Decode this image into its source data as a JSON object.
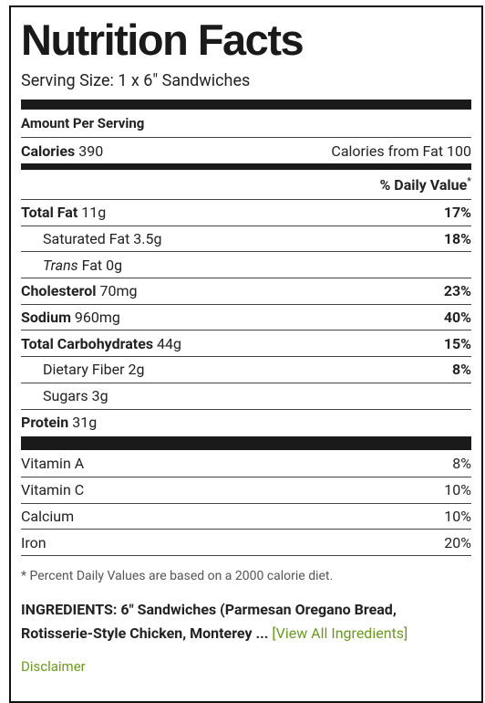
{
  "title": "Nutrition Facts",
  "serving_size": "Serving Size: 1 x 6\" Sandwiches",
  "amount_per_serving": "Amount Per Serving",
  "calories": {
    "label": "Calories",
    "value": "390",
    "from_fat": "Calories from Fat 100"
  },
  "daily_value_header": {
    "text": "% Daily Value",
    "mark": "*"
  },
  "nutrients": [
    {
      "name": "Total Fat",
      "amount": "11g",
      "dv": "17%",
      "style": "main"
    },
    {
      "name": "Saturated Fat",
      "amount": "3.5g",
      "dv": "18%",
      "style": "sub"
    },
    {
      "name_italic": "Trans",
      "name": "Fat",
      "amount": "0g",
      "style": "sub"
    },
    {
      "name": "Cholesterol",
      "amount": "70mg",
      "dv": "23%",
      "style": "main"
    },
    {
      "name": "Sodium",
      "amount": "960mg",
      "dv": "40%",
      "style": "main"
    },
    {
      "name": "Total Carbohydrates",
      "amount": "44g",
      "dv": "15%",
      "style": "main"
    },
    {
      "name": "Dietary Fiber",
      "amount": "2g",
      "dv": "8%",
      "style": "sub"
    },
    {
      "name": "Sugars",
      "amount": "3g",
      "style": "sub"
    },
    {
      "name": "Protein",
      "amount": "31g",
      "style": "main"
    }
  ],
  "vitamins": [
    {
      "name": "Vitamin A",
      "dv": "8%"
    },
    {
      "name": "Vitamin C",
      "dv": "10%"
    },
    {
      "name": "Calcium",
      "dv": "10%"
    },
    {
      "name": "Iron",
      "dv": "20%"
    }
  ],
  "footnote": "* Percent Daily Values are based on a 2000 calorie diet.",
  "ingredients": {
    "text": "INGREDIENTS: 6\" Sandwiches (Parmesan Oregano Bread, Rotisserie-Style Chicken, Monterey ...",
    "open": "[",
    "link": "View All Ingredients",
    "close": "]"
  },
  "disclaimer": "Disclaimer"
}
